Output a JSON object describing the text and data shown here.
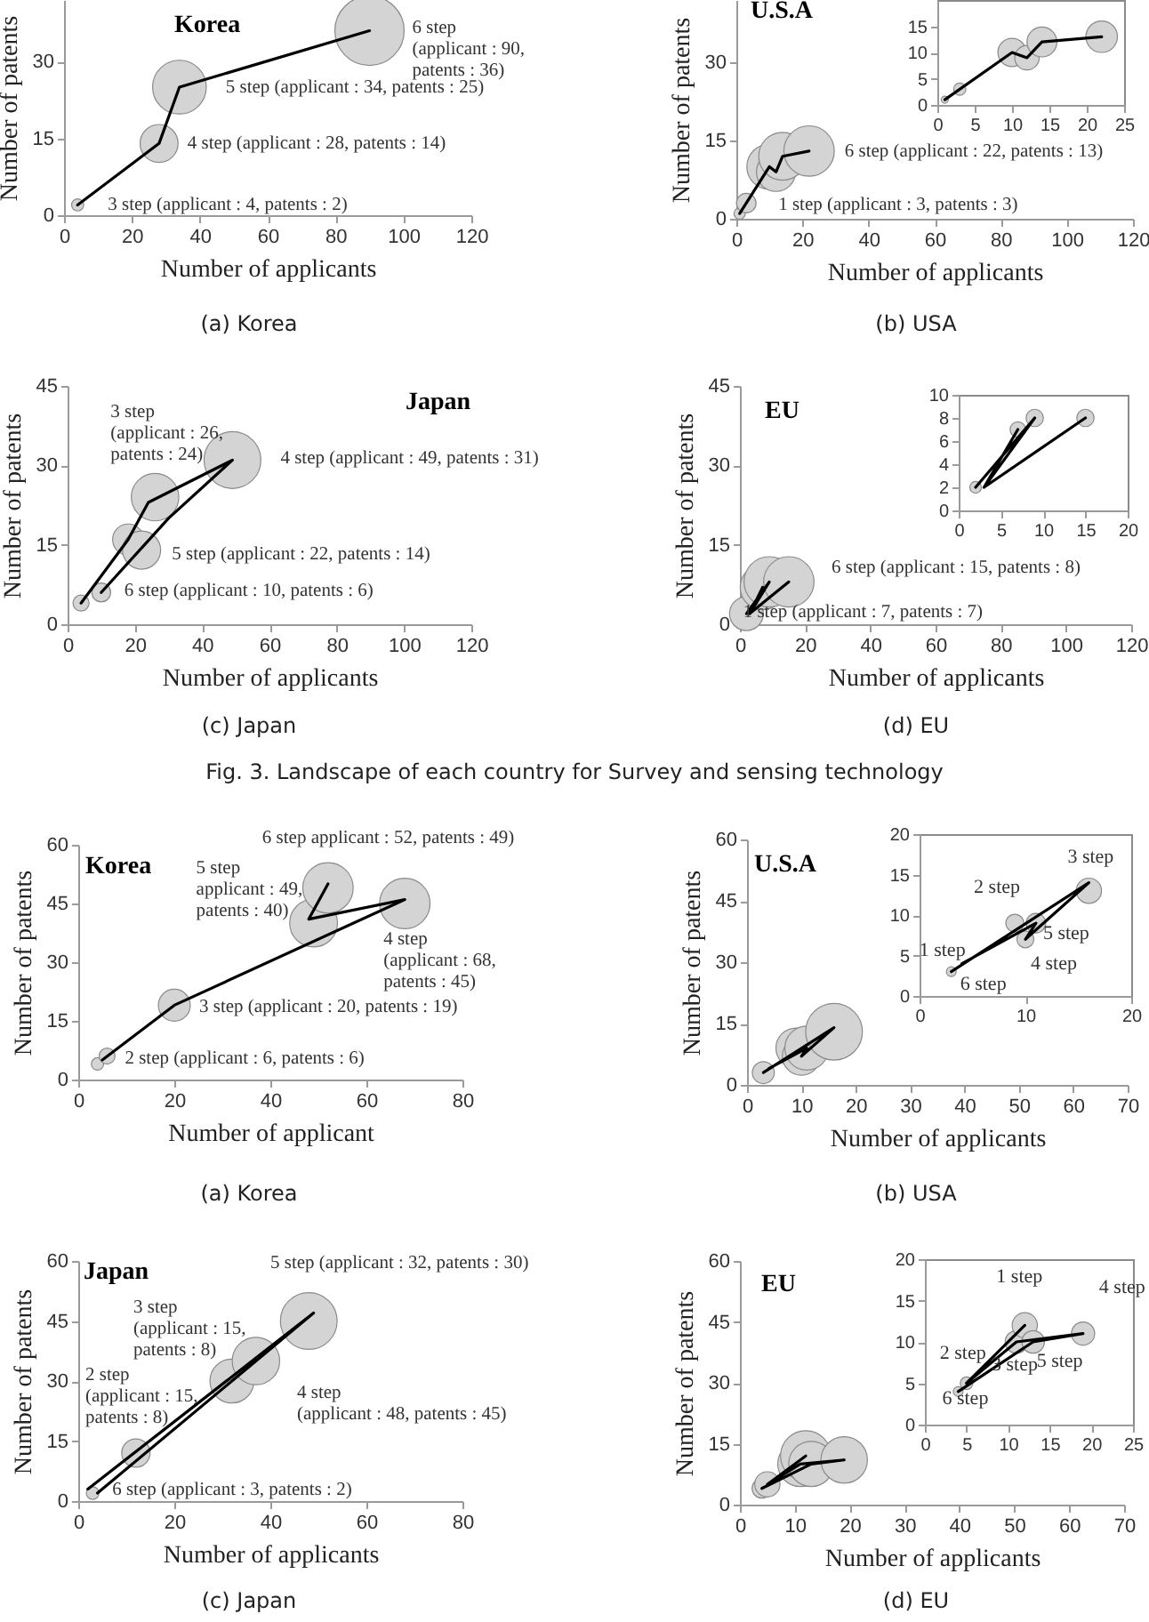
{
  "chart_data": [
    {
      "type": "bubble",
      "title": "Korea",
      "subtitle": "(a)  Korea",
      "xlabel": "Number of applicants",
      "ylabel": "Number of patents",
      "xlim": [
        0,
        120
      ],
      "xticks": [
        0,
        20,
        40,
        60,
        80,
        100,
        120
      ],
      "ylim": [
        0,
        42
      ],
      "yticks": [
        0,
        15,
        30
      ],
      "series": [
        {
          "type": "bubble",
          "color": "#d4d4d4",
          "x": [
            4,
            28,
            34,
            90
          ],
          "values": [
            2,
            14,
            25,
            36
          ],
          "sizes": [
            0.03,
            0.3,
            0.6,
            1
          ]
        },
        {
          "type": "line",
          "color": "#000000",
          "x": [
            4,
            28,
            34,
            90
          ],
          "values": [
            2,
            14,
            25,
            36
          ]
        }
      ],
      "annotations": [
        {
          "text": "3 step  (applicant : 4, patents : 2)",
          "x": 4,
          "y": 2
        },
        {
          "text": "4 step  (applicant : 28, patents : 14)",
          "x": 28,
          "y": 14
        },
        {
          "text": "5 step  (applicant : 34, patents : 25)",
          "x": 34,
          "y": 25
        },
        {
          "text": "6 step\n(applicant : 90,\npatents : 36)",
          "x": 90,
          "y": 36
        }
      ]
    },
    {
      "type": "bubble",
      "title": "U.S.A",
      "subtitle": "(b)  USA",
      "xlabel": "Number of applicants",
      "ylabel": "Number of patents",
      "xlim": [
        0,
        120
      ],
      "xticks": [
        0,
        20,
        40,
        60,
        80,
        100,
        120
      ],
      "ylim": [
        0,
        42
      ],
      "yticks": [
        0,
        15,
        30
      ],
      "series": [
        {
          "type": "bubble",
          "color": "#d4d4d4",
          "x": [
            1,
            3,
            10,
            12,
            14,
            22
          ],
          "values": [
            1,
            3,
            10,
            9,
            12,
            13
          ],
          "sizes": [
            0.05,
            0.15,
            0.8,
            0.6,
            0.9,
            1
          ]
        },
        {
          "type": "line",
          "color": "#000000",
          "x": [
            1,
            10,
            12,
            14,
            22
          ],
          "values": [
            1,
            10,
            9,
            12,
            13
          ]
        }
      ],
      "annotations": [
        {
          "text": "1 step (applicant : 3, patents : 3)",
          "x": 3,
          "y": 3
        },
        {
          "text": "6 step (applicant : 22, patents : 13)",
          "x": 22,
          "y": 13
        }
      ]
    },
    {
      "type": "bubble",
      "xlim": [
        0,
        25
      ],
      "xticks": [
        0,
        5,
        10,
        15,
        20,
        25
      ],
      "ylim": [
        0,
        20
      ],
      "yticks": [
        0,
        5,
        10,
        15
      ],
      "series": [
        {
          "type": "bubble",
          "color": "#d4d4d4",
          "x": [
            1,
            3,
            10,
            12,
            14,
            22
          ],
          "values": [
            1,
            3,
            10,
            9,
            12,
            13
          ],
          "sizes": [
            0.05,
            0.15,
            0.8,
            0.6,
            0.9,
            1
          ]
        },
        {
          "type": "line",
          "color": "#000000",
          "x": [
            1,
            10,
            12,
            14,
            22
          ],
          "values": [
            1,
            10,
            9,
            12,
            13
          ]
        }
      ]
    },
    {
      "type": "bubble",
      "title": "Japan",
      "subtitle": "(c)  Japan",
      "xlabel": "Number of applicants",
      "ylabel": "Number of patents",
      "xlim": [
        0,
        120
      ],
      "xticks": [
        0,
        20,
        40,
        60,
        80,
        100,
        120
      ],
      "ylim": [
        0,
        45
      ],
      "yticks": [
        0,
        15,
        30,
        45
      ],
      "series": [
        {
          "type": "bubble",
          "color": "#d4d4d4",
          "x": [
            4,
            10,
            18,
            22,
            26,
            49
          ],
          "values": [
            4,
            6,
            16,
            14,
            24,
            31
          ],
          "sizes": [
            0.08,
            0.11,
            0.3,
            0.45,
            0.7,
            1
          ]
        },
        {
          "type": "line",
          "color": "#000000",
          "x": [
            4,
            18,
            24,
            49,
            30,
            10
          ],
          "values": [
            4,
            16,
            23,
            31,
            20,
            6
          ]
        }
      ],
      "annotations": [
        {
          "text": "3 step\n(applicant : 26,\npatents : 24)",
          "x": 26,
          "y": 24
        },
        {
          "text": "4 step (applicant : 49, patents : 31)",
          "x": 49,
          "y": 31
        },
        {
          "text": "5 step (applicant : 22, patents : 14)",
          "x": 22,
          "y": 14
        },
        {
          "text": "6 step (applicant : 10, patents : 6)",
          "x": 10,
          "y": 6
        }
      ]
    },
    {
      "type": "bubble",
      "title": "EU",
      "subtitle": "(d)  EU",
      "xlabel": "Number of applicants",
      "ylabel": "Number of patents",
      "xlim": [
        0,
        120
      ],
      "xticks": [
        0,
        20,
        40,
        60,
        80,
        100,
        120
      ],
      "ylim": [
        0,
        45
      ],
      "yticks": [
        0,
        15,
        30,
        45
      ],
      "series": [
        {
          "type": "bubble",
          "color": "#d4d4d4",
          "x": [
            2,
            7,
            9,
            15
          ],
          "values": [
            2,
            7,
            8,
            8
          ],
          "sizes": [
            0.45,
            0.8,
            1,
            1
          ]
        },
        {
          "type": "line",
          "color": "#000000",
          "x": [
            2,
            9,
            3,
            7,
            3,
            15
          ],
          "values": [
            2,
            8,
            2,
            7,
            2,
            8
          ]
        }
      ],
      "annotations": [
        {
          "text": "6 step (applicant : 15, patents : 8)",
          "x": 15,
          "y": 8
        },
        {
          "text": "1 step (applicant : 7, patents : 7)",
          "x": 7,
          "y": 7
        },
        "Fig. 3. Landscape of each country for Survey and sensing technology"
      ]
    },
    {
      "type": "bubble",
      "xlim": [
        0,
        20
      ],
      "xticks": [
        0,
        5,
        10,
        15,
        20
      ],
      "ylim": [
        0,
        10
      ],
      "yticks": [
        0,
        2,
        4,
        6,
        8,
        10
      ],
      "series": [
        {
          "type": "bubble",
          "color": "#d4d4d4",
          "x": [
            2,
            7,
            9,
            15
          ],
          "values": [
            2,
            7,
            8,
            8
          ],
          "sizes": [
            0.45,
            0.8,
            1,
            1
          ]
        },
        {
          "type": "line",
          "color": "#000000",
          "x": [
            2,
            9,
            3,
            7,
            3,
            15
          ],
          "values": [
            2,
            8,
            2,
            7,
            2,
            8
          ]
        }
      ]
    },
    {
      "type": "bubble",
      "title": "Korea",
      "subtitle": "(a)  Korea",
      "xlabel": "Number of applicant",
      "ylabel": "Number of patents",
      "xlim": [
        0,
        80
      ],
      "xticks": [
        0,
        20,
        40,
        60,
        80
      ],
      "ylim": [
        0,
        60
      ],
      "yticks": [
        0,
        15,
        30,
        45,
        60
      ],
      "series": [
        {
          "type": "bubble",
          "color": "#d4d4d4",
          "x": [
            4,
            6,
            20,
            49,
            52,
            68
          ],
          "values": [
            4,
            6,
            19,
            40,
            49,
            45
          ],
          "sizes": [
            0.06,
            0.1,
            0.4,
            0.9,
            1,
            1
          ]
        },
        {
          "type": "line",
          "color": "#000000",
          "x": [
            5,
            20,
            68,
            48,
            52
          ],
          "values": [
            5,
            19,
            46,
            41,
            50
          ]
        }
      ],
      "annotations": [
        {
          "text": "2 step (applicant : 6, patents : 6)",
          "x": 6,
          "y": 6
        },
        {
          "text": "3 step (applicant : 20, patents : 19)",
          "x": 20,
          "y": 19
        },
        {
          "text": "4 step\n(applicant : 68,\npatents : 45)",
          "x": 68,
          "y": 45
        },
        {
          "text": "5 step\napplicant : 49,\npatents : 40)",
          "x": 49,
          "y": 40
        },
        {
          "text": "6 step applicant : 52, patents : 49)",
          "x": 52,
          "y": 49
        }
      ]
    },
    {
      "type": "bubble",
      "title": "U.S.A",
      "subtitle": "(b)  USA",
      "xlabel": "Number of applicants",
      "ylabel": "Number of patents",
      "xlim": [
        0,
        70
      ],
      "xticks": [
        0,
        10,
        20,
        30,
        40,
        50,
        60,
        70
      ],
      "ylim": [
        0,
        60
      ],
      "yticks": [
        0,
        15,
        30,
        45,
        60
      ],
      "series": [
        {
          "type": "bubble",
          "color": "#d4d4d4",
          "x": [
            3,
            9,
            10,
            11,
            16
          ],
          "values": [
            3,
            9,
            7,
            9,
            13
          ],
          "sizes": [
            0.15,
            0.5,
            0.45,
            0.6,
            1
          ]
        },
        {
          "type": "line",
          "color": "#000000",
          "x": [
            3,
            16,
            10,
            11,
            4
          ],
          "values": [
            3,
            14,
            7,
            9,
            4
          ]
        }
      ]
    },
    {
      "type": "bubble",
      "xlim": [
        0,
        20
      ],
      "xticks": [
        0,
        10,
        20
      ],
      "ylim": [
        0,
        20
      ],
      "yticks": [
        0,
        5,
        10,
        15,
        20
      ],
      "series": [
        {
          "type": "bubble",
          "color": "#d4d4d4",
          "x": [
            3,
            9,
            10,
            11,
            16
          ],
          "values": [
            3,
            9,
            7,
            9,
            13
          ],
          "sizes": [
            0.15,
            0.5,
            0.45,
            0.6,
            1
          ]
        },
        {
          "type": "line",
          "color": "#000000",
          "x": [
            3,
            16,
            10,
            11,
            4
          ],
          "values": [
            3,
            14,
            7,
            9,
            4
          ]
        }
      ],
      "annotations": [
        {
          "text": "1 step",
          "x": 3,
          "y": 3
        },
        {
          "text": "2 step",
          "x": 9,
          "y": 9
        },
        {
          "text": "3 step",
          "x": 16,
          "y": 13
        },
        {
          "text": "4 step",
          "x": 10,
          "y": 7
        },
        {
          "text": "5 step",
          "x": 11,
          "y": 9
        },
        {
          "text": "6 step",
          "x": 3,
          "y": 3
        }
      ]
    },
    {
      "type": "bubble",
      "title": "Japan",
      "subtitle": "(c)  Japan",
      "xlabel": "Number of applicants",
      "ylabel": "Number of patents",
      "xlim": [
        0,
        80
      ],
      "xticks": [
        0,
        20,
        40,
        60,
        80
      ],
      "ylim": [
        0,
        60
      ],
      "yticks": [
        0,
        15,
        30,
        45,
        60
      ],
      "series": [
        {
          "type": "bubble",
          "color": "#d4d4d4",
          "x": [
            3,
            12,
            32,
            37,
            48
          ],
          "values": [
            2,
            12,
            30,
            35,
            45
          ],
          "sizes": [
            0.05,
            0.25,
            0.6,
            0.7,
            1
          ]
        },
        {
          "type": "line",
          "color": "#000000",
          "x": [
            4,
            49,
            2
          ],
          "values": [
            2,
            47,
            3
          ]
        }
      ],
      "annotations": [
        {
          "text": "6 step (applicant : 3, patents : 2)",
          "x": 3,
          "y": 2
        },
        "5 step (applicant : 32, patents : 30)",
        "3 step\n(applicant : 15,\npatents : 8)",
        "2 step\n(applicant : 15,\npatents : 8)",
        "4 step\n(applicant : 48, patents : 45)"
      ]
    },
    {
      "type": "bubble",
      "title": "EU",
      "subtitle": "(d)  EU",
      "xlabel": "Number of applicants",
      "ylabel": "Number of patents",
      "xlim": [
        0,
        70
      ],
      "xticks": [
        0,
        10,
        20,
        30,
        40,
        50,
        60,
        70
      ],
      "ylim": [
        0,
        60
      ],
      "yticks": [
        0,
        15,
        30,
        45,
        60
      ],
      "series": [
        {
          "type": "bubble",
          "color": "#d4d4d4",
          "x": [
            4,
            5,
            11,
            12,
            13,
            19
          ],
          "values": [
            4,
            5,
            10,
            12,
            10,
            11
          ],
          "sizes": [
            0.15,
            0.25,
            0.8,
            1,
            0.8,
            0.85
          ]
        },
        {
          "type": "line",
          "color": "#000000",
          "x": [
            12,
            5,
            11,
            19,
            13,
            4
          ],
          "values": [
            12,
            5,
            10,
            11,
            10,
            4
          ]
        }
      ]
    },
    {
      "type": "bubble",
      "xlim": [
        0,
        25
      ],
      "xticks": [
        0,
        5,
        10,
        15,
        20,
        25
      ],
      "ylim": [
        0,
        20
      ],
      "yticks": [
        0,
        5,
        10,
        15,
        20
      ],
      "series": [
        {
          "type": "bubble",
          "color": "#d4d4d4",
          "x": [
            4,
            5,
            11,
            12,
            13,
            19
          ],
          "values": [
            4,
            5,
            10,
            12,
            10,
            11
          ],
          "sizes": [
            0.15,
            0.25,
            0.8,
            1,
            0.8,
            0.85
          ]
        },
        {
          "type": "line",
          "color": "#000000",
          "x": [
            12,
            5,
            11,
            19,
            13,
            4
          ],
          "values": [
            12,
            5,
            10,
            11,
            10,
            4
          ]
        }
      ],
      "annotations": [
        {
          "text": "1 step",
          "x": 12,
          "y": 12
        },
        {
          "text": "2 step",
          "x": 5,
          "y": 5
        },
        {
          "text": "3 step",
          "x": 11,
          "y": 10
        },
        {
          "text": "4 step",
          "x": 19,
          "y": 11
        },
        {
          "text": "5 step",
          "x": 13,
          "y": 10
        },
        {
          "text": "6 step",
          "x": 4,
          "y": 4
        }
      ]
    }
  ]
}
